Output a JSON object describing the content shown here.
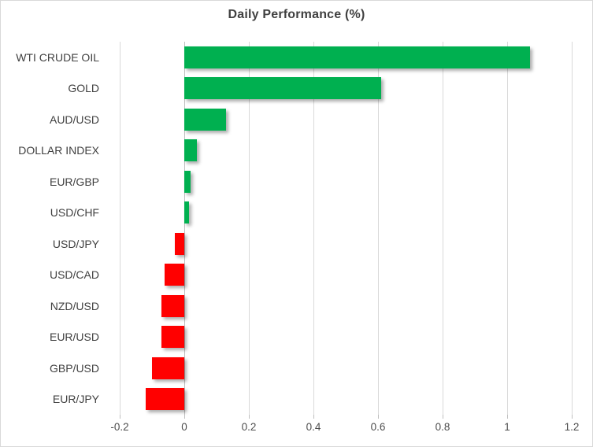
{
  "chart_data": {
    "type": "bar",
    "orientation": "horizontal",
    "title": "Daily Performance (%)",
    "categories": [
      "WTI CRUDE OIL",
      "GOLD",
      "AUD/USD",
      "DOLLAR INDEX",
      "EUR/GBP",
      "USD/CHF",
      "USD/JPY",
      "USD/CAD",
      "NZD/USD",
      "EUR/USD",
      "GBP/USD",
      "EUR/JPY"
    ],
    "values": [
      1.07,
      0.61,
      0.13,
      0.04,
      0.02,
      0.015,
      -0.03,
      -0.06,
      -0.07,
      -0.07,
      -0.1,
      -0.12
    ],
    "xlim": [
      -0.2,
      1.2
    ],
    "x_ticks": [
      -0.2,
      0,
      0.2,
      0.4,
      0.6,
      0.8,
      1,
      1.2
    ],
    "x_tick_labels": [
      "-0.2",
      "0",
      "0.2",
      "0.4",
      "0.6",
      "0.8",
      "1",
      "1.2"
    ],
    "xlabel": "",
    "ylabel": "",
    "grid": true,
    "legend_position": "none",
    "colors": {
      "positive": "#00B050",
      "negative": "#FF0000",
      "gridline": "#D9D9D9",
      "axis_line": "#BFBFBF",
      "title": "#404040",
      "category_label": "#404040",
      "tick_label": "#4d4d4d",
      "background": "#FFFFFF",
      "border": "#D9D9D9"
    }
  }
}
